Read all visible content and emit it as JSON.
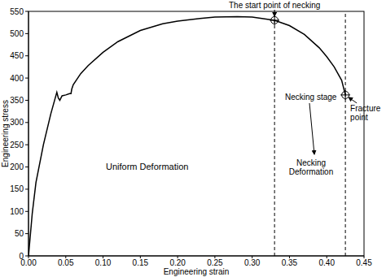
{
  "chart_data": {
    "type": "line",
    "xlabel": "Engineering strain",
    "ylabel": "Engineering stress",
    "x": [
      0,
      0.005,
      0.01,
      0.02,
      0.03,
      0.038,
      0.04,
      0.042,
      0.045,
      0.05,
      0.055,
      0.057,
      0.058,
      0.06,
      0.07,
      0.08,
      0.1,
      0.12,
      0.15,
      0.18,
      0.2,
      0.23,
      0.25,
      0.28,
      0.3,
      0.33,
      0.35,
      0.37,
      0.39,
      0.4,
      0.41,
      0.42,
      0.425
    ],
    "values": [
      0,
      95,
      165,
      250,
      320,
      368,
      355,
      350,
      360,
      362,
      365,
      365,
      375,
      385,
      410,
      428,
      458,
      482,
      507,
      522,
      528,
      534,
      537,
      538,
      537,
      530,
      518,
      498,
      468,
      448,
      425,
      395,
      362
    ],
    "color": "#000000",
    "xlim": [
      0,
      0.45
    ],
    "xticks": [
      {
        "value": 0,
        "label": "0.00"
      },
      0.05,
      {
        "value": 0.1,
        "label": "0.10"
      },
      0.15,
      {
        "value": 0.2,
        "label": "0.20"
      },
      0.25,
      {
        "value": 0.3,
        "label": "0.30"
      },
      0.35,
      {
        "value": 0.4,
        "label": "0.40"
      },
      0.45
    ],
    "ylim": [
      0,
      550
    ],
    "yticks": [
      0,
      50,
      100,
      150,
      200,
      250,
      300,
      350,
      400,
      450,
      500,
      550
    ],
    "grid": false,
    "events": [
      {
        "label": "The start point of necking",
        "x": 0.33,
        "y": 530
      },
      {
        "label": "Fracture point",
        "x": 0.425,
        "y": 362
      }
    ],
    "annotations": [
      "Uniform Deformation",
      "Necking stage",
      "Necking Deformation"
    ]
  }
}
